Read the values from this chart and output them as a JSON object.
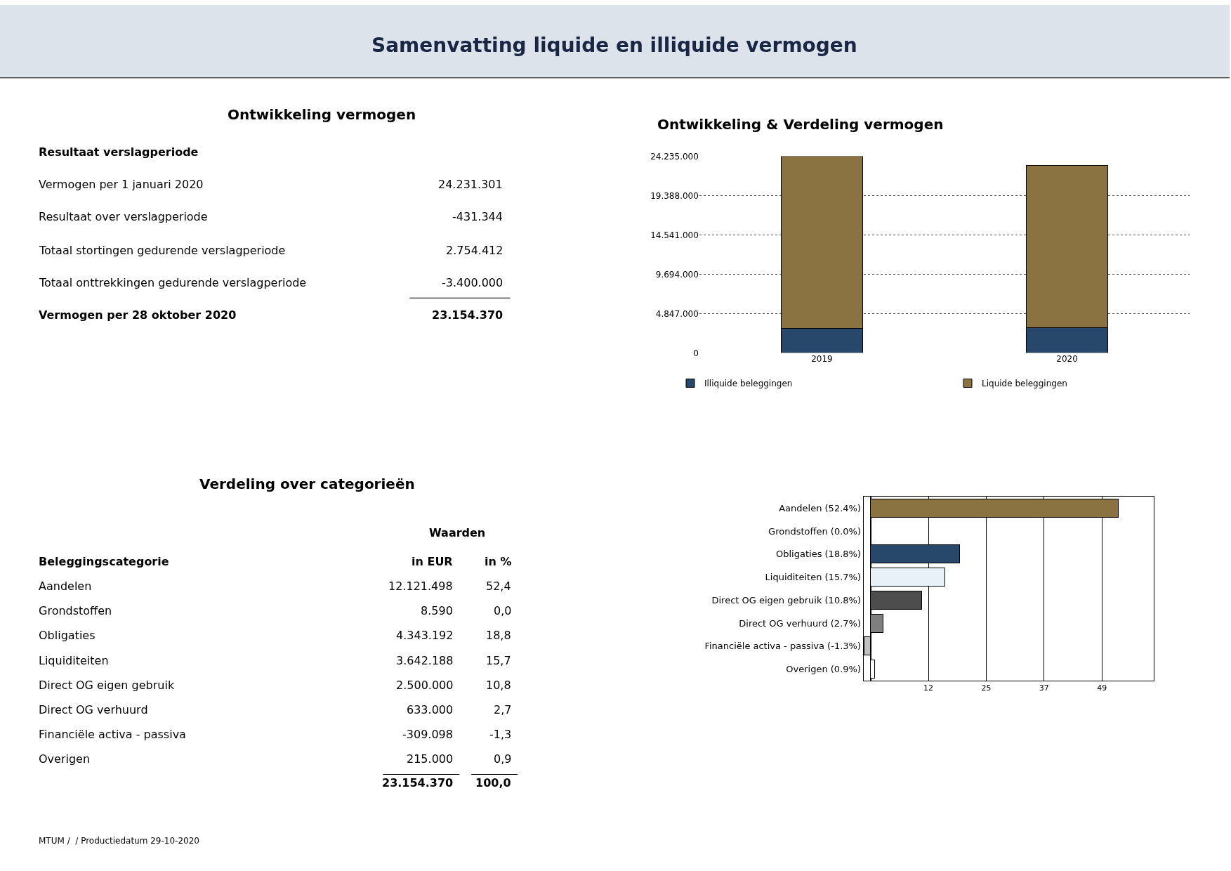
{
  "chart_data": [
    {
      "type": "other",
      "title": "Samenvatting liquide en illiquide vermogen"
    },
    {
      "type": "other",
      "title": "Ontwikkeling vermogen",
      "annotations": [
        "Resultaat verslagperiode",
        "Vermogen per 1 januari 2020",
        "24.231.301",
        "Resultaat over verslagperiode",
        "-431.344",
        "Totaal stortingen gedurende verslagperiode",
        "2.754.412",
        "Totaal onttrekkingen gedurende verslagperiode",
        "-3.400.000",
        "Vermogen per 28 oktober 2020",
        "23.154.370"
      ]
    },
    {
      "type": "bar",
      "title": "Ontwikkeling & Verdeling vermogen",
      "categories": [
        "2019",
        "2020"
      ],
      "stacked": true,
      "series": [
        {
          "name": "Illiquide beleggingen",
          "color": "#27476b",
          "values": [
            3000000,
            3100000
          ]
        },
        {
          "name": "Liquide beleggingen",
          "color": "#8a7340",
          "values": [
            21200000,
            20000000
          ]
        }
      ],
      "ylim": [
        0,
        24235000
      ],
      "yticks": [
        {
          "value": 0,
          "label": "0"
        },
        {
          "value": 4847000,
          "label": "4.847.000"
        },
        {
          "value": 9694000,
          "label": "9.694.000"
        },
        {
          "value": 14541000,
          "label": "14.541.000"
        },
        {
          "value": 19388000,
          "label": "19.388.000"
        },
        {
          "value": 24235000,
          "label": "24.235.000"
        }
      ],
      "grid": "y",
      "legend": "bottom"
    },
    {
      "type": "other",
      "title": "Verdeling over categorieën",
      "annotations": [
        "Waarden",
        "Beleggingscategorie",
        "in EUR",
        "in %",
        "Aandelen",
        "12.121.498",
        "52,4",
        "Grondstoffen",
        "8.590",
        "0,0",
        "Obligaties",
        "4.343.192",
        "18,8",
        "Liquiditeiten",
        "3.642.188",
        "15,7",
        "Direct OG eigen gebruik",
        "2.500.000",
        "10,8",
        "Direct OG verhuurd",
        "633.000",
        "2,7",
        "Financiële activa - passiva",
        "-309.098",
        "-1,3",
        "Overigen",
        "215.000",
        "0,9",
        "23.154.370",
        "100,0",
        "MTUM /  / Productiedatum 29-10-2020"
      ]
    },
    {
      "type": "bar",
      "orientation": "horizontal",
      "categories": [
        "Aandelen (52.4%)",
        "Grondstoffen (0.0%)",
        "Obligaties (18.8%)",
        "Liquiditeiten (15.7%)",
        "Direct OG eigen gebruik (10.8%)",
        "Direct OG verhuurd (2.7%)",
        "Financiële activa - passiva (-1.3%)",
        "Overigen (0.9%)"
      ],
      "values": [
        52.4,
        0.0,
        18.8,
        15.7,
        10.8,
        2.7,
        -1.3,
        0.9
      ],
      "colors": [
        "#8a7340",
        null,
        "#27476b",
        "#e8f0f8",
        "#4d4d4d",
        "#7f7f7f",
        "#bfbfbf",
        "#ffffff"
      ],
      "xlim": [
        -1.5,
        60
      ],
      "xticks": [
        {
          "value": 12.25,
          "label": "12"
        },
        {
          "value": 24.5,
          "label": "25"
        },
        {
          "value": 36.75,
          "label": "37"
        },
        {
          "value": 49,
          "label": "49"
        }
      ],
      "grid": "x"
    }
  ]
}
